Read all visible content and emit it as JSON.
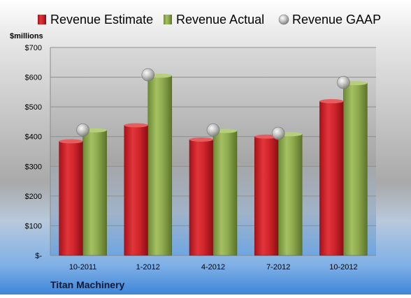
{
  "chart_data": {
    "type": "bar",
    "categories": [
      "10-2011",
      "1-2012",
      "4-2012",
      "7-2012",
      "10-2012"
    ],
    "series": [
      {
        "name": "Revenue Estimate",
        "kind": "bar",
        "values": [
          384,
          438,
          390,
          400,
          519
        ]
      },
      {
        "name": "Revenue Actual",
        "kind": "bar",
        "values": [
          421,
          605,
          419,
          408,
          580
        ]
      },
      {
        "name": "Revenue GAAP",
        "kind": "marker",
        "values": [
          422,
          608,
          422,
          411,
          582
        ]
      }
    ],
    "ylabel": "$millions",
    "ylim": [
      0,
      700
    ],
    "yticks": [
      0,
      100,
      200,
      300,
      400,
      500,
      600,
      700
    ],
    "ytick_labels": [
      "$-",
      "$100",
      "$200",
      "$300",
      "$400",
      "$500",
      "$600",
      "$700"
    ],
    "grid": true,
    "legend": "top",
    "source_label": "Titan Machinery",
    "colors": {
      "estimate": "#cc1f26",
      "actual": "#8aa84d",
      "gaap": "#a6a6a6",
      "background_top": "#ffffff",
      "background_bottom": "#4a90d9"
    }
  }
}
